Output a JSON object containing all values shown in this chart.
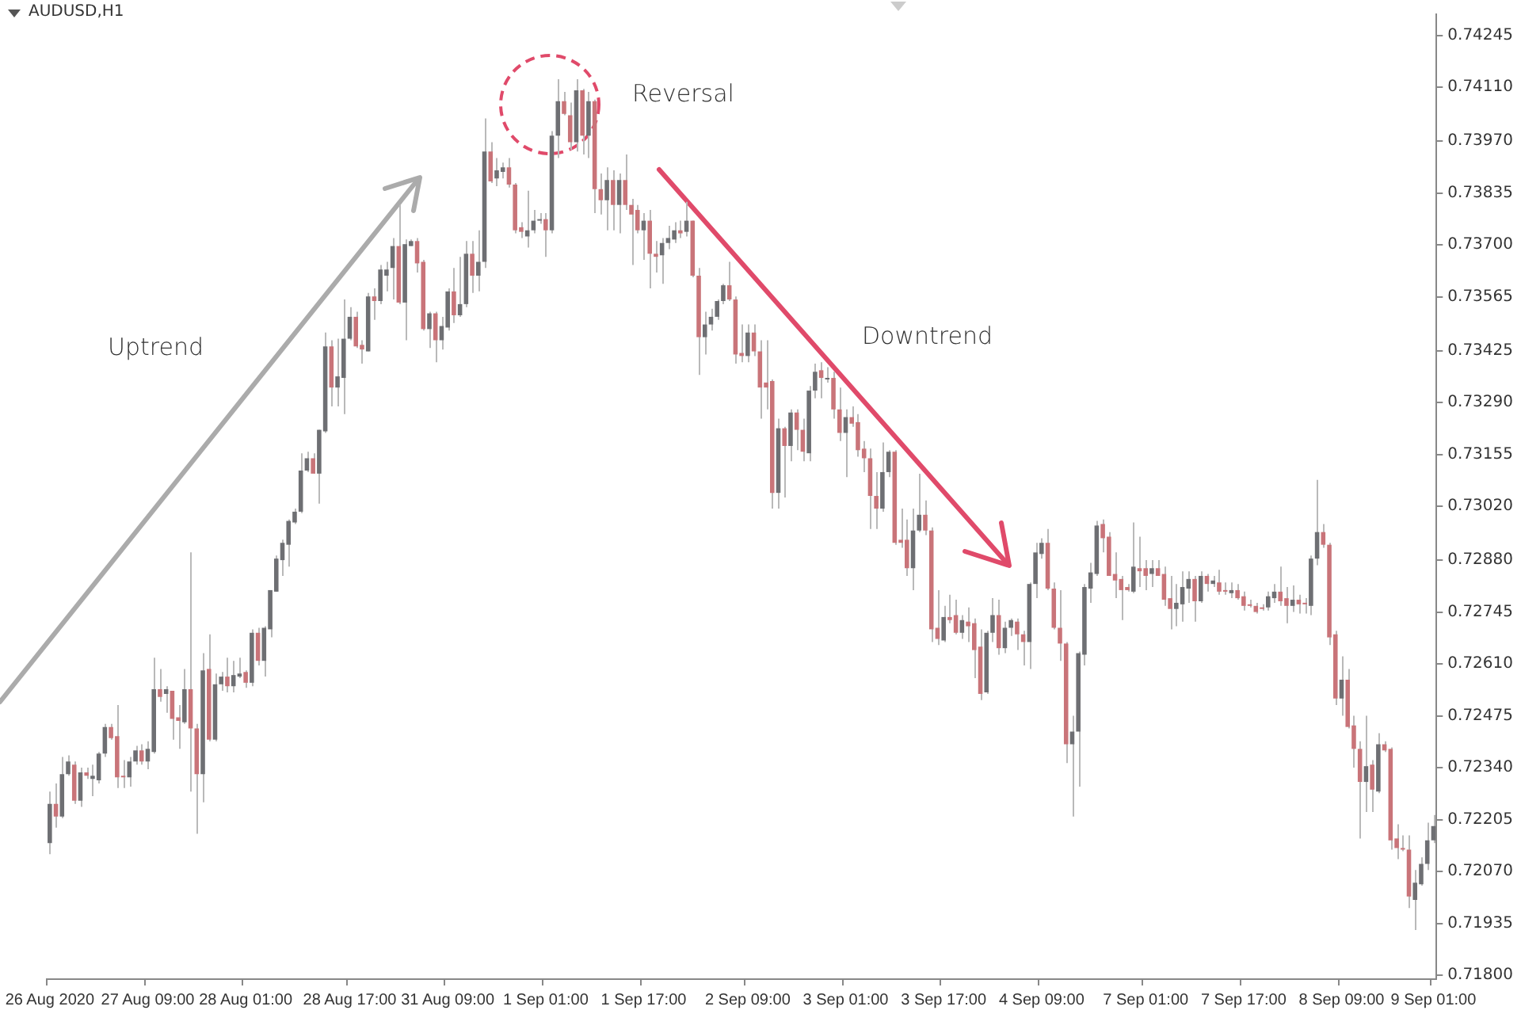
{
  "chart_data": {
    "type": "candlestick",
    "title": "AUDUSD,H1",
    "annotations": [
      "Uptrend",
      "Reversal",
      "Downtrend"
    ],
    "categories": [
      "26 Aug 2020",
      null,
      null,
      null,
      null,
      null,
      null,
      null,
      null,
      null,
      null,
      null,
      null,
      null,
      null,
      null,
      "27 Aug 09:00",
      null,
      null,
      null,
      null,
      null,
      null,
      null,
      null,
      null,
      null,
      null,
      null,
      null,
      null,
      null,
      "28 Aug 01:00",
      null,
      null,
      null,
      null,
      null,
      null,
      null,
      null,
      null,
      null,
      null,
      null,
      null,
      null,
      null,
      null,
      "28 Aug 17:00",
      null,
      null,
      null,
      null,
      null,
      null,
      null,
      null,
      null,
      null,
      null,
      null,
      null,
      null,
      null,
      "31 Aug 09:00",
      null,
      null,
      null,
      null,
      null,
      null,
      null,
      null,
      null,
      null,
      null,
      null,
      null,
      null,
      null,
      "1 Sep 01:00",
      null,
      null,
      null,
      null,
      null,
      null,
      null,
      null,
      null,
      null,
      null,
      null,
      null,
      null,
      null,
      "1 Sep 17:00",
      null,
      null,
      null,
      null,
      null,
      null,
      null,
      null,
      null,
      null,
      null,
      null,
      null,
      null,
      null,
      null,
      "2 Sep 09:00",
      null,
      null,
      null,
      null,
      null,
      null,
      null,
      null,
      null,
      null,
      null,
      null,
      null,
      null,
      null,
      "3 Sep 01:00",
      null,
      null,
      null,
      null,
      null,
      null,
      null,
      null,
      null,
      null,
      null,
      null,
      null,
      null,
      null,
      "3 Sep 17:00",
      null,
      null,
      null,
      null,
      null,
      null,
      null,
      null,
      null,
      null,
      null,
      null,
      null,
      null,
      null,
      "4 Sep 09:00",
      null,
      null,
      null,
      null,
      null,
      null,
      null,
      null,
      null,
      null,
      null,
      null,
      null,
      null,
      null,
      null,
      "7 Sep 01:00",
      null,
      null,
      null,
      null,
      null,
      null,
      null,
      null,
      null,
      null,
      null,
      null,
      null,
      null,
      null,
      "7 Sep 17:00",
      null,
      null,
      null,
      null,
      null,
      null,
      null,
      null,
      null,
      null,
      null,
      null,
      null,
      null,
      null,
      "8 Sep 09:00",
      null,
      null,
      null,
      null,
      null,
      null,
      null,
      null,
      null,
      null,
      null,
      null,
      null,
      null,
      "9 Sep 01:00"
    ],
    "ohlc": [
      [
        0.72144,
        0.72278,
        0.72115,
        0.72246
      ],
      [
        0.72246,
        0.72299,
        0.72184,
        0.72213
      ],
      [
        0.72213,
        0.72368,
        0.72209,
        0.72323
      ],
      [
        0.72323,
        0.72372,
        0.72319,
        0.72356
      ],
      [
        0.72348,
        0.72356,
        0.72246,
        0.72254
      ],
      [
        0.72254,
        0.7234,
        0.72238,
        0.72328
      ],
      [
        0.72328,
        0.7234,
        0.72311,
        0.72319
      ],
      [
        0.72311,
        0.72348,
        0.72266,
        0.72319
      ],
      [
        0.72307,
        0.72381,
        0.72299,
        0.72377
      ],
      [
        0.72377,
        0.72454,
        0.72368,
        0.72446
      ],
      [
        0.72446,
        0.72454,
        0.72413,
        0.72417
      ],
      [
        0.72422,
        0.72503,
        0.72287,
        0.72315
      ],
      [
        0.72319,
        0.7236,
        0.72287,
        0.72315
      ],
      [
        0.72315,
        0.72368,
        0.72291,
        0.72356
      ],
      [
        0.72356,
        0.72397,
        0.72348,
        0.72385
      ],
      [
        0.72385,
        0.72401,
        0.72348,
        0.72356
      ],
      [
        0.72356,
        0.72409,
        0.72336,
        0.72389
      ],
      [
        0.72381,
        0.72626,
        0.72377,
        0.72544
      ],
      [
        0.72544,
        0.72597,
        0.72512,
        0.72524
      ],
      [
        0.72532,
        0.72552,
        0.72483,
        0.72544
      ],
      [
        0.7254,
        0.7254,
        0.72413,
        0.72467
      ],
      [
        0.72471,
        0.72503,
        0.72389,
        0.72462
      ],
      [
        0.72458,
        0.72597,
        0.72454,
        0.72544
      ],
      [
        0.72544,
        0.729,
        0.72278,
        0.72442
      ],
      [
        0.72442,
        0.72454,
        0.72168,
        0.72323
      ],
      [
        0.72323,
        0.72638,
        0.7225,
        0.72593
      ],
      [
        0.72597,
        0.72687,
        0.72409,
        0.72413
      ],
      [
        0.72413,
        0.72585,
        0.72409,
        0.72557
      ],
      [
        0.72557,
        0.72589,
        0.7254,
        0.72577
      ],
      [
        0.72577,
        0.72626,
        0.72536,
        0.72552
      ],
      [
        0.72552,
        0.72618,
        0.72536,
        0.72581
      ],
      [
        0.72577,
        0.72626,
        0.72573,
        0.72585
      ],
      [
        0.72589,
        0.72593,
        0.72548,
        0.72561
      ],
      [
        0.72561,
        0.727,
        0.72552,
        0.72691
      ],
      [
        0.72691,
        0.72704,
        0.72606,
        0.72618
      ],
      [
        0.72618,
        0.72708,
        0.72577,
        0.72704
      ],
      [
        0.727,
        0.72802,
        0.72679,
        0.72802
      ],
      [
        0.72798,
        0.72892,
        0.72798,
        0.72884
      ],
      [
        0.7288,
        0.72933,
        0.72839,
        0.72925
      ],
      [
        0.7292,
        0.72986,
        0.72863,
        0.72982
      ],
      [
        0.72978,
        0.73014,
        0.72974,
        0.73006
      ],
      [
        0.73006,
        0.73158,
        0.73002,
        0.73113
      ],
      [
        0.73113,
        0.73162,
        0.73109,
        0.73145
      ],
      [
        0.73145,
        0.73158,
        0.73105,
        0.73105
      ],
      [
        0.73105,
        0.73219,
        0.73027,
        0.73219
      ],
      [
        0.73215,
        0.73472,
        0.73211,
        0.73436
      ],
      [
        0.73436,
        0.73452,
        0.7328,
        0.73329
      ],
      [
        0.73329,
        0.73456,
        0.7328,
        0.73358
      ],
      [
        0.73354,
        0.73558,
        0.7326,
        0.73456
      ],
      [
        0.73456,
        0.73538,
        0.73452,
        0.73513
      ],
      [
        0.73513,
        0.73526,
        0.73432,
        0.73436
      ],
      [
        0.7344,
        0.73452,
        0.73391,
        0.73428
      ],
      [
        0.73423,
        0.73575,
        0.73423,
        0.73566
      ],
      [
        0.73566,
        0.73587,
        0.73505,
        0.73554
      ],
      [
        0.73554,
        0.73648,
        0.73546,
        0.73636
      ],
      [
        0.7362,
        0.73656,
        0.73579,
        0.73636
      ],
      [
        0.7364,
        0.73718,
        0.73558,
        0.73697
      ],
      [
        0.73697,
        0.73804,
        0.73546,
        0.7355
      ],
      [
        0.7355,
        0.73714,
        0.73452,
        0.73702
      ],
      [
        0.73697,
        0.73714,
        0.73697,
        0.7371
      ],
      [
        0.7371,
        0.73718,
        0.73628,
        0.73652
      ],
      [
        0.73656,
        0.73661,
        0.73477,
        0.73481
      ],
      [
        0.73481,
        0.73526,
        0.73432,
        0.73522
      ],
      [
        0.73522,
        0.73526,
        0.73395,
        0.73452
      ],
      [
        0.73452,
        0.73513,
        0.73428,
        0.73489
      ],
      [
        0.73485,
        0.73587,
        0.73477,
        0.73579
      ],
      [
        0.73579,
        0.7364,
        0.73497,
        0.73517
      ],
      [
        0.73517,
        0.73669,
        0.73513,
        0.73546
      ],
      [
        0.73546,
        0.7371,
        0.73538,
        0.73677
      ],
      [
        0.73677,
        0.7371,
        0.73575,
        0.7362
      ],
      [
        0.7362,
        0.73738,
        0.73579,
        0.73656
      ],
      [
        0.73656,
        0.74029,
        0.7364,
        0.73943
      ],
      [
        0.73943,
        0.73967,
        0.73861,
        0.73865
      ],
      [
        0.73873,
        0.73926,
        0.73853,
        0.73894
      ],
      [
        0.7389,
        0.73914,
        0.73873,
        0.73902
      ],
      [
        0.73902,
        0.73926,
        0.73849,
        0.73857
      ],
      [
        0.73857,
        0.73861,
        0.7373,
        0.73738
      ],
      [
        0.73746,
        0.73759,
        0.73718,
        0.73734
      ],
      [
        0.73722,
        0.73841,
        0.73693,
        0.73738
      ],
      [
        0.73738,
        0.73791,
        0.7373,
        0.73763
      ],
      [
        0.73763,
        0.73783,
        0.73755,
        0.73767
      ],
      [
        0.73767,
        0.73783,
        0.73669,
        0.73738
      ],
      [
        0.73738,
        0.73996,
        0.7373,
        0.73984
      ],
      [
        0.73984,
        0.74131,
        0.73926,
        0.74074
      ],
      [
        0.74074,
        0.74098,
        0.74037,
        0.74041
      ],
      [
        0.74037,
        0.7407,
        0.73947,
        0.73967
      ],
      [
        0.73967,
        0.74131,
        0.73943,
        0.74102
      ],
      [
        0.74102,
        0.74106,
        0.73935,
        0.73984
      ],
      [
        0.73984,
        0.74098,
        0.73926,
        0.74074
      ],
      [
        0.74074,
        0.74078,
        0.73783,
        0.73845
      ],
      [
        0.73845,
        0.73886,
        0.73779,
        0.73816
      ],
      [
        0.73816,
        0.73902,
        0.73738,
        0.73869
      ],
      [
        0.73869,
        0.73894,
        0.73738,
        0.73804
      ],
      [
        0.73804,
        0.73886,
        0.7373,
        0.73869
      ],
      [
        0.73869,
        0.73935,
        0.73791,
        0.73804
      ],
      [
        0.73804,
        0.7382,
        0.73648,
        0.73779
      ],
      [
        0.73791,
        0.73804,
        0.7373,
        0.73738
      ],
      [
        0.73738,
        0.73783,
        0.73661,
        0.73763
      ],
      [
        0.73763,
        0.73791,
        0.73587,
        0.73677
      ],
      [
        0.73677,
        0.7371,
        0.73628,
        0.73669
      ],
      [
        0.73673,
        0.73718,
        0.73599,
        0.73705
      ],
      [
        0.73705,
        0.7375,
        0.73689,
        0.73718
      ],
      [
        0.73714,
        0.73759,
        0.73705,
        0.73738
      ],
      [
        0.73738,
        0.73763,
        0.73718,
        0.7373
      ],
      [
        0.73734,
        0.73812,
        0.73722,
        0.73763
      ],
      [
        0.73763,
        0.73763,
        0.73616,
        0.7362
      ],
      [
        0.7362,
        0.7364,
        0.73362,
        0.7346
      ],
      [
        0.7346,
        0.73526,
        0.73415,
        0.73493
      ],
      [
        0.73493,
        0.73534,
        0.73477,
        0.73513
      ],
      [
        0.73513,
        0.73558,
        0.73505,
        0.73554
      ],
      [
        0.73554,
        0.73599,
        0.73546,
        0.73595
      ],
      [
        0.73595,
        0.73656,
        0.73554,
        0.73558
      ],
      [
        0.73558,
        0.73566,
        0.73391,
        0.73415
      ],
      [
        0.73419,
        0.73493,
        0.73395,
        0.73411
      ],
      [
        0.73411,
        0.73493,
        0.73395,
        0.73472
      ],
      [
        0.73472,
        0.73493,
        0.73411,
        0.73423
      ],
      [
        0.73423,
        0.73452,
        0.73248,
        0.73329
      ],
      [
        0.73342,
        0.73452,
        0.73272,
        0.73329
      ],
      [
        0.73346,
        0.7335,
        0.73014,
        0.73055
      ],
      [
        0.73055,
        0.73248,
        0.73014,
        0.73223
      ],
      [
        0.73223,
        0.73227,
        0.73043,
        0.73177
      ],
      [
        0.73177,
        0.73272,
        0.73137,
        0.73264
      ],
      [
        0.73264,
        0.73272,
        0.73166,
        0.73219
      ],
      [
        0.73219,
        0.73248,
        0.73137,
        0.73162
      ],
      [
        0.73158,
        0.73333,
        0.73137,
        0.73321
      ],
      [
        0.73321,
        0.73391,
        0.73301,
        0.7337
      ],
      [
        0.73374,
        0.73395,
        0.73301,
        0.73354
      ],
      [
        0.7335,
        0.73382,
        0.73342,
        0.73354
      ],
      [
        0.73354,
        0.7337,
        0.73248,
        0.73272
      ],
      [
        0.73272,
        0.73329,
        0.7319,
        0.73211
      ],
      [
        0.73211,
        0.73272,
        0.73096,
        0.73252
      ],
      [
        0.73252,
        0.7328,
        0.73227,
        0.73235
      ],
      [
        0.73239,
        0.7326,
        0.73149,
        0.73166
      ],
      [
        0.7317,
        0.7319,
        0.73109,
        0.73145
      ],
      [
        0.73145,
        0.7317,
        0.72961,
        0.73047
      ],
      [
        0.73047,
        0.73109,
        0.72961,
        0.73014
      ],
      [
        0.73014,
        0.73186,
        0.73006,
        0.73109
      ],
      [
        0.73109,
        0.73166,
        0.73096,
        0.73162
      ],
      [
        0.73162,
        0.73166,
        0.7292,
        0.72925
      ],
      [
        0.72933,
        0.73014,
        0.72912,
        0.72925
      ],
      [
        0.72933,
        0.72986,
        0.72839,
        0.72859
      ],
      [
        0.72859,
        0.73014,
        0.72802,
        0.72957
      ],
      [
        0.72957,
        0.73105,
        0.72953,
        0.72998
      ],
      [
        0.72998,
        0.73035,
        0.72945,
        0.72957
      ],
      [
        0.72957,
        0.72965,
        0.72667,
        0.727
      ],
      [
        0.72704,
        0.72802,
        0.72659,
        0.72675
      ],
      [
        0.72671,
        0.72761,
        0.72667,
        0.72732
      ],
      [
        0.72732,
        0.7279,
        0.72716,
        0.72724
      ],
      [
        0.72737,
        0.72777,
        0.72687,
        0.72691
      ],
      [
        0.72691,
        0.72737,
        0.72675,
        0.72724
      ],
      [
        0.7272,
        0.72757,
        0.72667,
        0.72708
      ],
      [
        0.72716,
        0.72728,
        0.72573,
        0.72646
      ],
      [
        0.72655,
        0.727,
        0.72516,
        0.72532
      ],
      [
        0.72536,
        0.72696,
        0.72532,
        0.72691
      ],
      [
        0.72691,
        0.72781,
        0.72667,
        0.72737
      ],
      [
        0.72737,
        0.72777,
        0.72634,
        0.72651
      ],
      [
        0.72651,
        0.7272,
        0.72638,
        0.72704
      ],
      [
        0.72704,
        0.72728,
        0.72683,
        0.72724
      ],
      [
        0.7272,
        0.72728,
        0.72646,
        0.72687
      ],
      [
        0.72687,
        0.72696,
        0.72606,
        0.72667
      ],
      [
        0.72667,
        0.72822,
        0.72597,
        0.72818
      ],
      [
        0.72818,
        0.72925,
        0.72781,
        0.729
      ],
      [
        0.72896,
        0.72937,
        0.72884,
        0.72925
      ],
      [
        0.72925,
        0.72961,
        0.72802,
        0.72806
      ],
      [
        0.72806,
        0.72822,
        0.727,
        0.72704
      ],
      [
        0.72704,
        0.72802,
        0.72618,
        0.72663
      ],
      [
        0.72663,
        0.72667,
        0.72352,
        0.72401
      ],
      [
        0.72401,
        0.72475,
        0.72213,
        0.72434
      ],
      [
        0.72434,
        0.72642,
        0.72291,
        0.72638
      ],
      [
        0.72634,
        0.72818,
        0.72606,
        0.7281
      ],
      [
        0.72806,
        0.72873,
        0.72769,
        0.72848
      ],
      [
        0.72844,
        0.72982,
        0.72839,
        0.7297
      ],
      [
        0.72974,
        0.72986,
        0.729,
        0.72937
      ],
      [
        0.72941,
        0.72953,
        0.72839,
        0.72839
      ],
      [
        0.72844,
        0.729,
        0.72781,
        0.72827
      ],
      [
        0.72831,
        0.72839,
        0.72724,
        0.72802
      ],
      [
        0.7281,
        0.72818,
        0.72798,
        0.72802
      ],
      [
        0.72798,
        0.72978,
        0.72794,
        0.72863
      ],
      [
        0.72859,
        0.72941,
        0.7281,
        0.72851
      ],
      [
        0.72859,
        0.7288,
        0.72802,
        0.72839
      ],
      [
        0.72844,
        0.7288,
        0.7281,
        0.72859
      ],
      [
        0.72859,
        0.7288,
        0.72839,
        0.72839
      ],
      [
        0.72844,
        0.72863,
        0.72761,
        0.72777
      ],
      [
        0.72781,
        0.72839,
        0.727,
        0.72753
      ],
      [
        0.72753,
        0.72818,
        0.72708,
        0.72769
      ],
      [
        0.72765,
        0.72851,
        0.7272,
        0.7281
      ],
      [
        0.72806,
        0.72851,
        0.72769,
        0.72831
      ],
      [
        0.72831,
        0.72839,
        0.7272,
        0.72773
      ],
      [
        0.72773,
        0.72851,
        0.72769,
        0.72839
      ],
      [
        0.72839,
        0.72844,
        0.72798,
        0.72818
      ],
      [
        0.72818,
        0.72839,
        0.7281,
        0.72827
      ],
      [
        0.72822,
        0.72855,
        0.7279,
        0.72798
      ],
      [
        0.72802,
        0.72822,
        0.7279,
        0.72798
      ],
      [
        0.72794,
        0.72822,
        0.72781,
        0.72802
      ],
      [
        0.72802,
        0.72818,
        0.72777,
        0.72781
      ],
      [
        0.72786,
        0.72798,
        0.72749,
        0.72761
      ],
      [
        0.72765,
        0.72777,
        0.72757,
        0.72761
      ],
      [
        0.72761,
        0.72769,
        0.72741,
        0.72745
      ],
      [
        0.72757,
        0.72765,
        0.72749,
        0.72753
      ],
      [
        0.72757,
        0.72798,
        0.72749,
        0.72786
      ],
      [
        0.72781,
        0.72818,
        0.72769,
        0.72798
      ],
      [
        0.72798,
        0.72863,
        0.72761,
        0.72773
      ],
      [
        0.72781,
        0.7281,
        0.72716,
        0.72761
      ],
      [
        0.72761,
        0.72814,
        0.72745,
        0.72777
      ],
      [
        0.72777,
        0.7279,
        0.72741,
        0.72765
      ],
      [
        0.72769,
        0.72781,
        0.72741,
        0.72765
      ],
      [
        0.72761,
        0.72892,
        0.72737,
        0.72884
      ],
      [
        0.72884,
        0.73089,
        0.72867,
        0.72953
      ],
      [
        0.72953,
        0.72974,
        0.72912,
        0.7292
      ],
      [
        0.7292,
        0.72925,
        0.72659,
        0.72679
      ],
      [
        0.72687,
        0.72696,
        0.72503,
        0.7252
      ],
      [
        0.7252,
        0.7263,
        0.72475,
        0.72569
      ],
      [
        0.72569,
        0.72597,
        0.72442,
        0.72446
      ],
      [
        0.7245,
        0.72475,
        0.7234,
        0.72389
      ],
      [
        0.72389,
        0.72409,
        0.72156,
        0.72303
      ],
      [
        0.72303,
        0.72475,
        0.72225,
        0.72344
      ],
      [
        0.72348,
        0.7236,
        0.72225,
        0.72283
      ],
      [
        0.72278,
        0.7243,
        0.72274,
        0.72401
      ],
      [
        0.72401,
        0.72409,
        0.72381,
        0.72385
      ],
      [
        0.72389,
        0.72393,
        0.72127,
        0.72151
      ],
      [
        0.72156,
        0.72193,
        0.72102,
        0.72131
      ],
      [
        0.72131,
        0.72164,
        0.72123,
        0.72127
      ],
      [
        0.72127,
        0.72164,
        0.71975,
        0.72005
      ],
      [
        0.71996,
        0.72074,
        0.71918,
        0.72041
      ],
      [
        0.72037,
        0.72107,
        0.72033,
        0.7209
      ],
      [
        0.7209,
        0.72197,
        0.72074,
        0.72151
      ],
      [
        0.72151,
        0.72217,
        0.72144,
        0.72188
      ]
    ],
    "colors": [
      "#6e6f73",
      "#c97479",
      "#6e6f73",
      "#6e6f73",
      "#c97479",
      "#6e6f73",
      "#c97479",
      "#6e6f73",
      "#6e6f73",
      "#6e6f73",
      "#c97479",
      "#c97479",
      "#c97479",
      "#6e6f73",
      "#6e6f73",
      "#c97479",
      "#6e6f73",
      "#6e6f73",
      "#c97479",
      "#6e6f73",
      "#c97479",
      "#c97479",
      "#6e6f73",
      "#c97479",
      "#c97479",
      "#6e6f73",
      "#c97479",
      "#6e6f73",
      "#6e6f73",
      "#c97479",
      "#6e6f73",
      "#6e6f73",
      "#c97479",
      "#6e6f73",
      "#c97479",
      "#6e6f73",
      "#6e6f73",
      "#6e6f73",
      "#6e6f73",
      "#6e6f73",
      "#6e6f73",
      "#6e6f73",
      "#6e6f73",
      "#c97479",
      "#6e6f73",
      "#6e6f73",
      "#c97479",
      "#6e6f73",
      "#6e6f73",
      "#6e6f73",
      "#c97479",
      "#c97479",
      "#6e6f73",
      "#c97479",
      "#6e6f73",
      "#6e6f73",
      "#6e6f73",
      "#c97479",
      "#6e6f73",
      "#6e6f73",
      "#c97479",
      "#c97479",
      "#6e6f73",
      "#c97479",
      "#6e6f73",
      "#6e6f73",
      "#c97479",
      "#6e6f73",
      "#6e6f73",
      "#c97479",
      "#6e6f73",
      "#6e6f73",
      "#c97479",
      "#6e6f73",
      "#6e6f73",
      "#c97479",
      "#c97479",
      "#c97479",
      "#6e6f73",
      "#6e6f73",
      "#6e6f73",
      "#c97479",
      "#6e6f73",
      "#6e6f73",
      "#c97479",
      "#c97479",
      "#6e6f73",
      "#c97479",
      "#6e6f73",
      "#c97479",
      "#c97479",
      "#6e6f73",
      "#c97479",
      "#6e6f73",
      "#c97479",
      "#c97479",
      "#c97479",
      "#6e6f73",
      "#c97479",
      "#c97479",
      "#6e6f73",
      "#6e6f73",
      "#6e6f73",
      "#c97479",
      "#6e6f73",
      "#c97479",
      "#c97479",
      "#6e6f73",
      "#6e6f73",
      "#6e6f73",
      "#6e6f73",
      "#c97479",
      "#c97479",
      "#c97479",
      "#6e6f73",
      "#c97479",
      "#c97479",
      "#c97479",
      "#c97479",
      "#6e6f73",
      "#c97479",
      "#6e6f73",
      "#c97479",
      "#c97479",
      "#6e6f73",
      "#6e6f73",
      "#c97479",
      "#6e6f73",
      "#c97479",
      "#c97479",
      "#6e6f73",
      "#c97479",
      "#c97479",
      "#c97479",
      "#c97479",
      "#c97479",
      "#6e6f73",
      "#6e6f73",
      "#c97479",
      "#c97479",
      "#c97479",
      "#6e6f73",
      "#6e6f73",
      "#c97479",
      "#c97479",
      "#c97479",
      "#6e6f73",
      "#c97479",
      "#c97479",
      "#6e6f73",
      "#c97479",
      "#c97479",
      "#c97479",
      "#6e6f73",
      "#6e6f73",
      "#c97479",
      "#6e6f73",
      "#6e6f73",
      "#c97479",
      "#c97479",
      "#6e6f73",
      "#6e6f73",
      "#6e6f73",
      "#c97479",
      "#c97479",
      "#c97479",
      "#c97479",
      "#6e6f73",
      "#6e6f73",
      "#6e6f73",
      "#6e6f73",
      "#6e6f73",
      "#c97479",
      "#c97479",
      "#c97479",
      "#c97479",
      "#c97479",
      "#6e6f73",
      "#c97479",
      "#c97479",
      "#6e6f73",
      "#c97479",
      "#c97479",
      "#c97479",
      "#6e6f73",
      "#6e6f73",
      "#6e6f73",
      "#c97479",
      "#6e6f73",
      "#c97479",
      "#6e6f73",
      "#c97479",
      "#c97479",
      "#6e6f73",
      "#c97479",
      "#c97479",
      "#c97479",
      "#c97479",
      "#c97479",
      "#6e6f73",
      "#6e6f73",
      "#c97479",
      "#c97479",
      "#6e6f73",
      "#c97479",
      "#c97479",
      "#6e6f73",
      "#6e6f73",
      "#c97479",
      "#c97479",
      "#c97479",
      "#6e6f73",
      "#c97479",
      "#c97479",
      "#c97479",
      "#6e6f73",
      "#c97479",
      "#6e6f73",
      "#c97479",
      "#c97479",
      "#c97479",
      "#c97479",
      "#c97479",
      "#6e6f73",
      "#6e6f73",
      "#6e6f73",
      "#6e6f73"
    ],
    "ylim": [
      0.7179,
      0.743
    ],
    "yticks": [
      {
        "value": 0.74245,
        "label": "0.74245"
      },
      {
        "value": 0.7411,
        "label": "0.74110"
      },
      {
        "value": 0.7397,
        "label": "0.73970"
      },
      {
        "value": 0.73835,
        "label": "0.73835"
      },
      {
        "value": 0.737,
        "label": "0.73700"
      },
      {
        "value": 0.73565,
        "label": "0.73565"
      },
      {
        "value": 0.73425,
        "label": "0.73425"
      },
      {
        "value": 0.7329,
        "label": "0.73290"
      },
      {
        "value": 0.73155,
        "label": "0.73155"
      },
      {
        "value": 0.7302,
        "label": "0.73020"
      },
      {
        "value": 0.7288,
        "label": "0.72880"
      },
      {
        "value": 0.72745,
        "label": "0.72745"
      },
      {
        "value": 0.7261,
        "label": "0.72610"
      },
      {
        "value": 0.72475,
        "label": "0.72475"
      },
      {
        "value": 0.7234,
        "label": "0.72340"
      },
      {
        "value": 0.72205,
        "label": "0.72205"
      },
      {
        "value": 0.7207,
        "label": "0.72070"
      },
      {
        "value": 0.71935,
        "label": "0.71935"
      },
      {
        "value": 0.718,
        "label": "0.71800"
      }
    ]
  }
}
